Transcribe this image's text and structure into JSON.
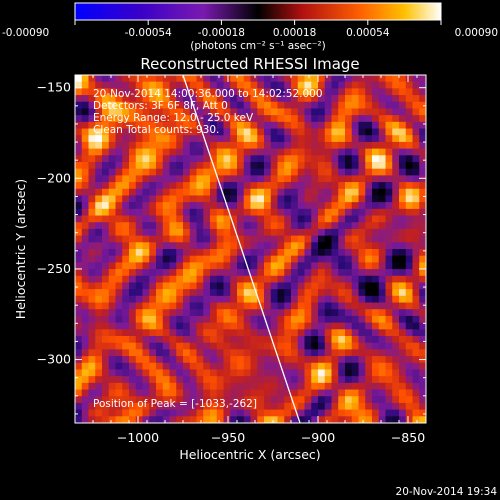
{
  "colorbar": {
    "ticks": [
      "-0.00090",
      "-0.00054",
      "-0.00018",
      "0.00018",
      "0.00054",
      "0.00090"
    ],
    "tick_values": [
      -0.0009,
      -0.00054,
      -0.00018,
      0.00018,
      0.00054,
      0.0009
    ],
    "range": [
      -0.0009,
      0.0009
    ],
    "units": "(photons cm⁻² s⁻¹ asec⁻²)",
    "colormap": [
      "#000000",
      "#2a0a7a",
      "#7a1a9a",
      "#c02020",
      "#ff5000",
      "#ffb000",
      "#ffffff"
    ]
  },
  "plot": {
    "title": "Reconstructed RHESSI Image",
    "xlabel": "Heliocentric X (arcsec)",
    "ylabel": "Heliocentric Y (arcsec)",
    "xlim": [
      -1035,
      -840
    ],
    "ylim": [
      -335,
      -143
    ],
    "xticks": [
      -1000,
      -950,
      -900,
      -850
    ],
    "xtick_labels": [
      "−1000",
      "−950",
      "−900",
      "−850"
    ],
    "yticks": [
      -150,
      -200,
      -250,
      -300
    ],
    "ytick_labels": [
      "−150",
      "−200",
      "−250",
      "−300"
    ],
    "annotations": [
      "20-Nov-2014 14:00:36.000 to 14:02:52.000",
      "Detectors: 3F 6F 8F, Att 0",
      "Energy Range: 12.0 - 25.0 keV",
      "Clean    Total counts: 930."
    ],
    "peak_label": "Position of Peak = [-1033,-262]",
    "limb_line": {
      "x": [
        -975,
        -910
      ],
      "y": [
        -143,
        -335
      ]
    }
  },
  "footer": {
    "timestamp": "20-Nov-2014 19:34"
  },
  "chart_data": {
    "type": "heatmap",
    "title": "Reconstructed RHESSI Image",
    "xlabel": "Heliocentric X (arcsec)",
    "ylabel": "Heliocentric Y (arcsec)",
    "xlim": [
      -1035,
      -840
    ],
    "ylim": [
      -335,
      -143
    ],
    "value_range": [
      -0.0009,
      0.0009
    ],
    "peak_position": [
      -1033,
      -262
    ],
    "grid": false
  }
}
